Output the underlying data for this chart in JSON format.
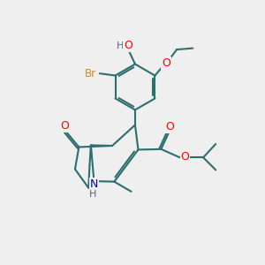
{
  "bg_color": "#efefef",
  "bond_color": "#2d6e6e",
  "bond_width": 1.5,
  "atom_colors": {
    "O": "#ff0000",
    "N": "#0000cc",
    "Br": "#cc8833",
    "H": "#556677"
  },
  "figsize": [
    3.0,
    3.0
  ],
  "dpi": 100
}
